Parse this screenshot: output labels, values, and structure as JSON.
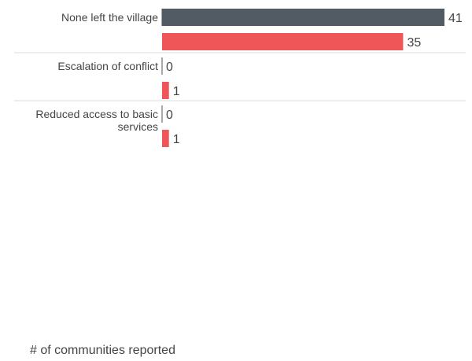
{
  "chart_data": {
    "type": "bar",
    "orientation": "horizontal",
    "categories": [
      [
        "None left the village"
      ],
      [
        "Escalation of conflict"
      ],
      [
        "Reduced access to basic",
        "services"
      ]
    ],
    "series": [
      {
        "values": [
          41,
          0,
          0
        ],
        "color": "#525a63"
      },
      {
        "values": [
          35,
          1,
          1
        ],
        "color": "#ef5658"
      }
    ],
    "xlabel": "# of communities reported",
    "ylabel": "",
    "xlim": [
      0,
      41
    ],
    "grid": false,
    "legend": "none"
  }
}
